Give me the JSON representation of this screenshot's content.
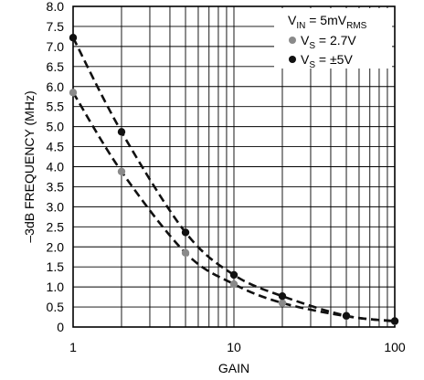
{
  "chart_data": {
    "type": "scatter",
    "xlabel": "GAIN",
    "ylabel": "–3dB FREQUENCY (MHz)",
    "x_scale": "log",
    "xlim": [
      1,
      100
    ],
    "ylim": [
      0,
      8.0
    ],
    "grid": true,
    "legend_position": "top-right",
    "x_ticks": [
      "1",
      "10",
      "100"
    ],
    "y_ticks": [
      "0",
      "0.5",
      "1.0",
      "1.5",
      "2.0",
      "2.5",
      "3.0",
      "3.5",
      "4.0",
      "4.5",
      "5.0",
      "5.5",
      "6.0",
      "6.5",
      "7.0",
      "7.5",
      "8.0"
    ],
    "legend_title": {
      "main": "V",
      "sub": "IN",
      "after": " = 5mV",
      "sub2": "RMS"
    },
    "series": [
      {
        "legend_main": "V",
        "legend_sub": "S",
        "legend_after": " = 2.7V",
        "color": "#8a8a8a",
        "x": [
          1,
          2,
          5,
          10,
          20,
          50,
          100
        ],
        "values": [
          5.85,
          3.88,
          1.85,
          1.07,
          0.6,
          0.27,
          0.14
        ]
      },
      {
        "legend_main": "V",
        "legend_sub": "S",
        "legend_after": " = ±5V",
        "color": "#111111",
        "x": [
          1,
          2,
          5,
          10,
          20,
          50,
          100
        ],
        "values": [
          7.22,
          4.87,
          2.36,
          1.3,
          0.77,
          0.28,
          0.15
        ]
      }
    ]
  }
}
